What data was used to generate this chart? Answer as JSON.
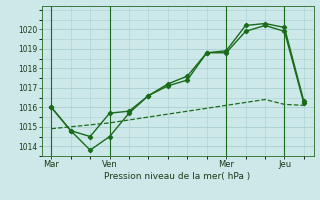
{
  "background_color": "#cce8e8",
  "grid_color": "#aad0d0",
  "line_color": "#1a6b1a",
  "title": "Pression niveau de la mer( hPa )",
  "ylim": [
    1013.5,
    1021.2
  ],
  "yticks": [
    1014,
    1015,
    1016,
    1017,
    1018,
    1019,
    1020
  ],
  "xtick_labels": [
    "Mar",
    "Ven",
    "Mer",
    "Jeu"
  ],
  "xtick_positions": [
    0,
    3,
    9,
    12
  ],
  "vertical_lines": [
    0,
    3,
    9,
    12
  ],
  "series1_x": [
    0,
    1,
    2,
    3,
    4,
    5,
    6,
    7,
    8,
    9,
    10,
    11,
    12,
    13
  ],
  "series1_y": [
    1016.0,
    1014.8,
    1013.8,
    1014.5,
    1015.7,
    1016.6,
    1017.1,
    1017.4,
    1018.8,
    1018.8,
    1019.9,
    1020.2,
    1019.9,
    1016.2
  ],
  "series2_x": [
    0,
    1,
    2,
    3,
    4,
    5,
    6,
    7,
    8,
    9,
    10,
    11,
    12,
    13
  ],
  "series2_y": [
    1016.0,
    1014.8,
    1014.5,
    1015.7,
    1015.8,
    1016.6,
    1017.2,
    1017.6,
    1018.8,
    1018.9,
    1020.2,
    1020.3,
    1020.1,
    1016.3
  ],
  "series3_x": [
    0,
    1,
    2,
    3,
    4,
    5,
    6,
    7,
    8,
    9,
    10,
    11,
    12,
    13
  ],
  "series3_y": [
    1014.9,
    1015.0,
    1015.1,
    1015.2,
    1015.35,
    1015.5,
    1015.65,
    1015.8,
    1015.95,
    1016.1,
    1016.25,
    1016.4,
    1016.15,
    1016.1
  ]
}
